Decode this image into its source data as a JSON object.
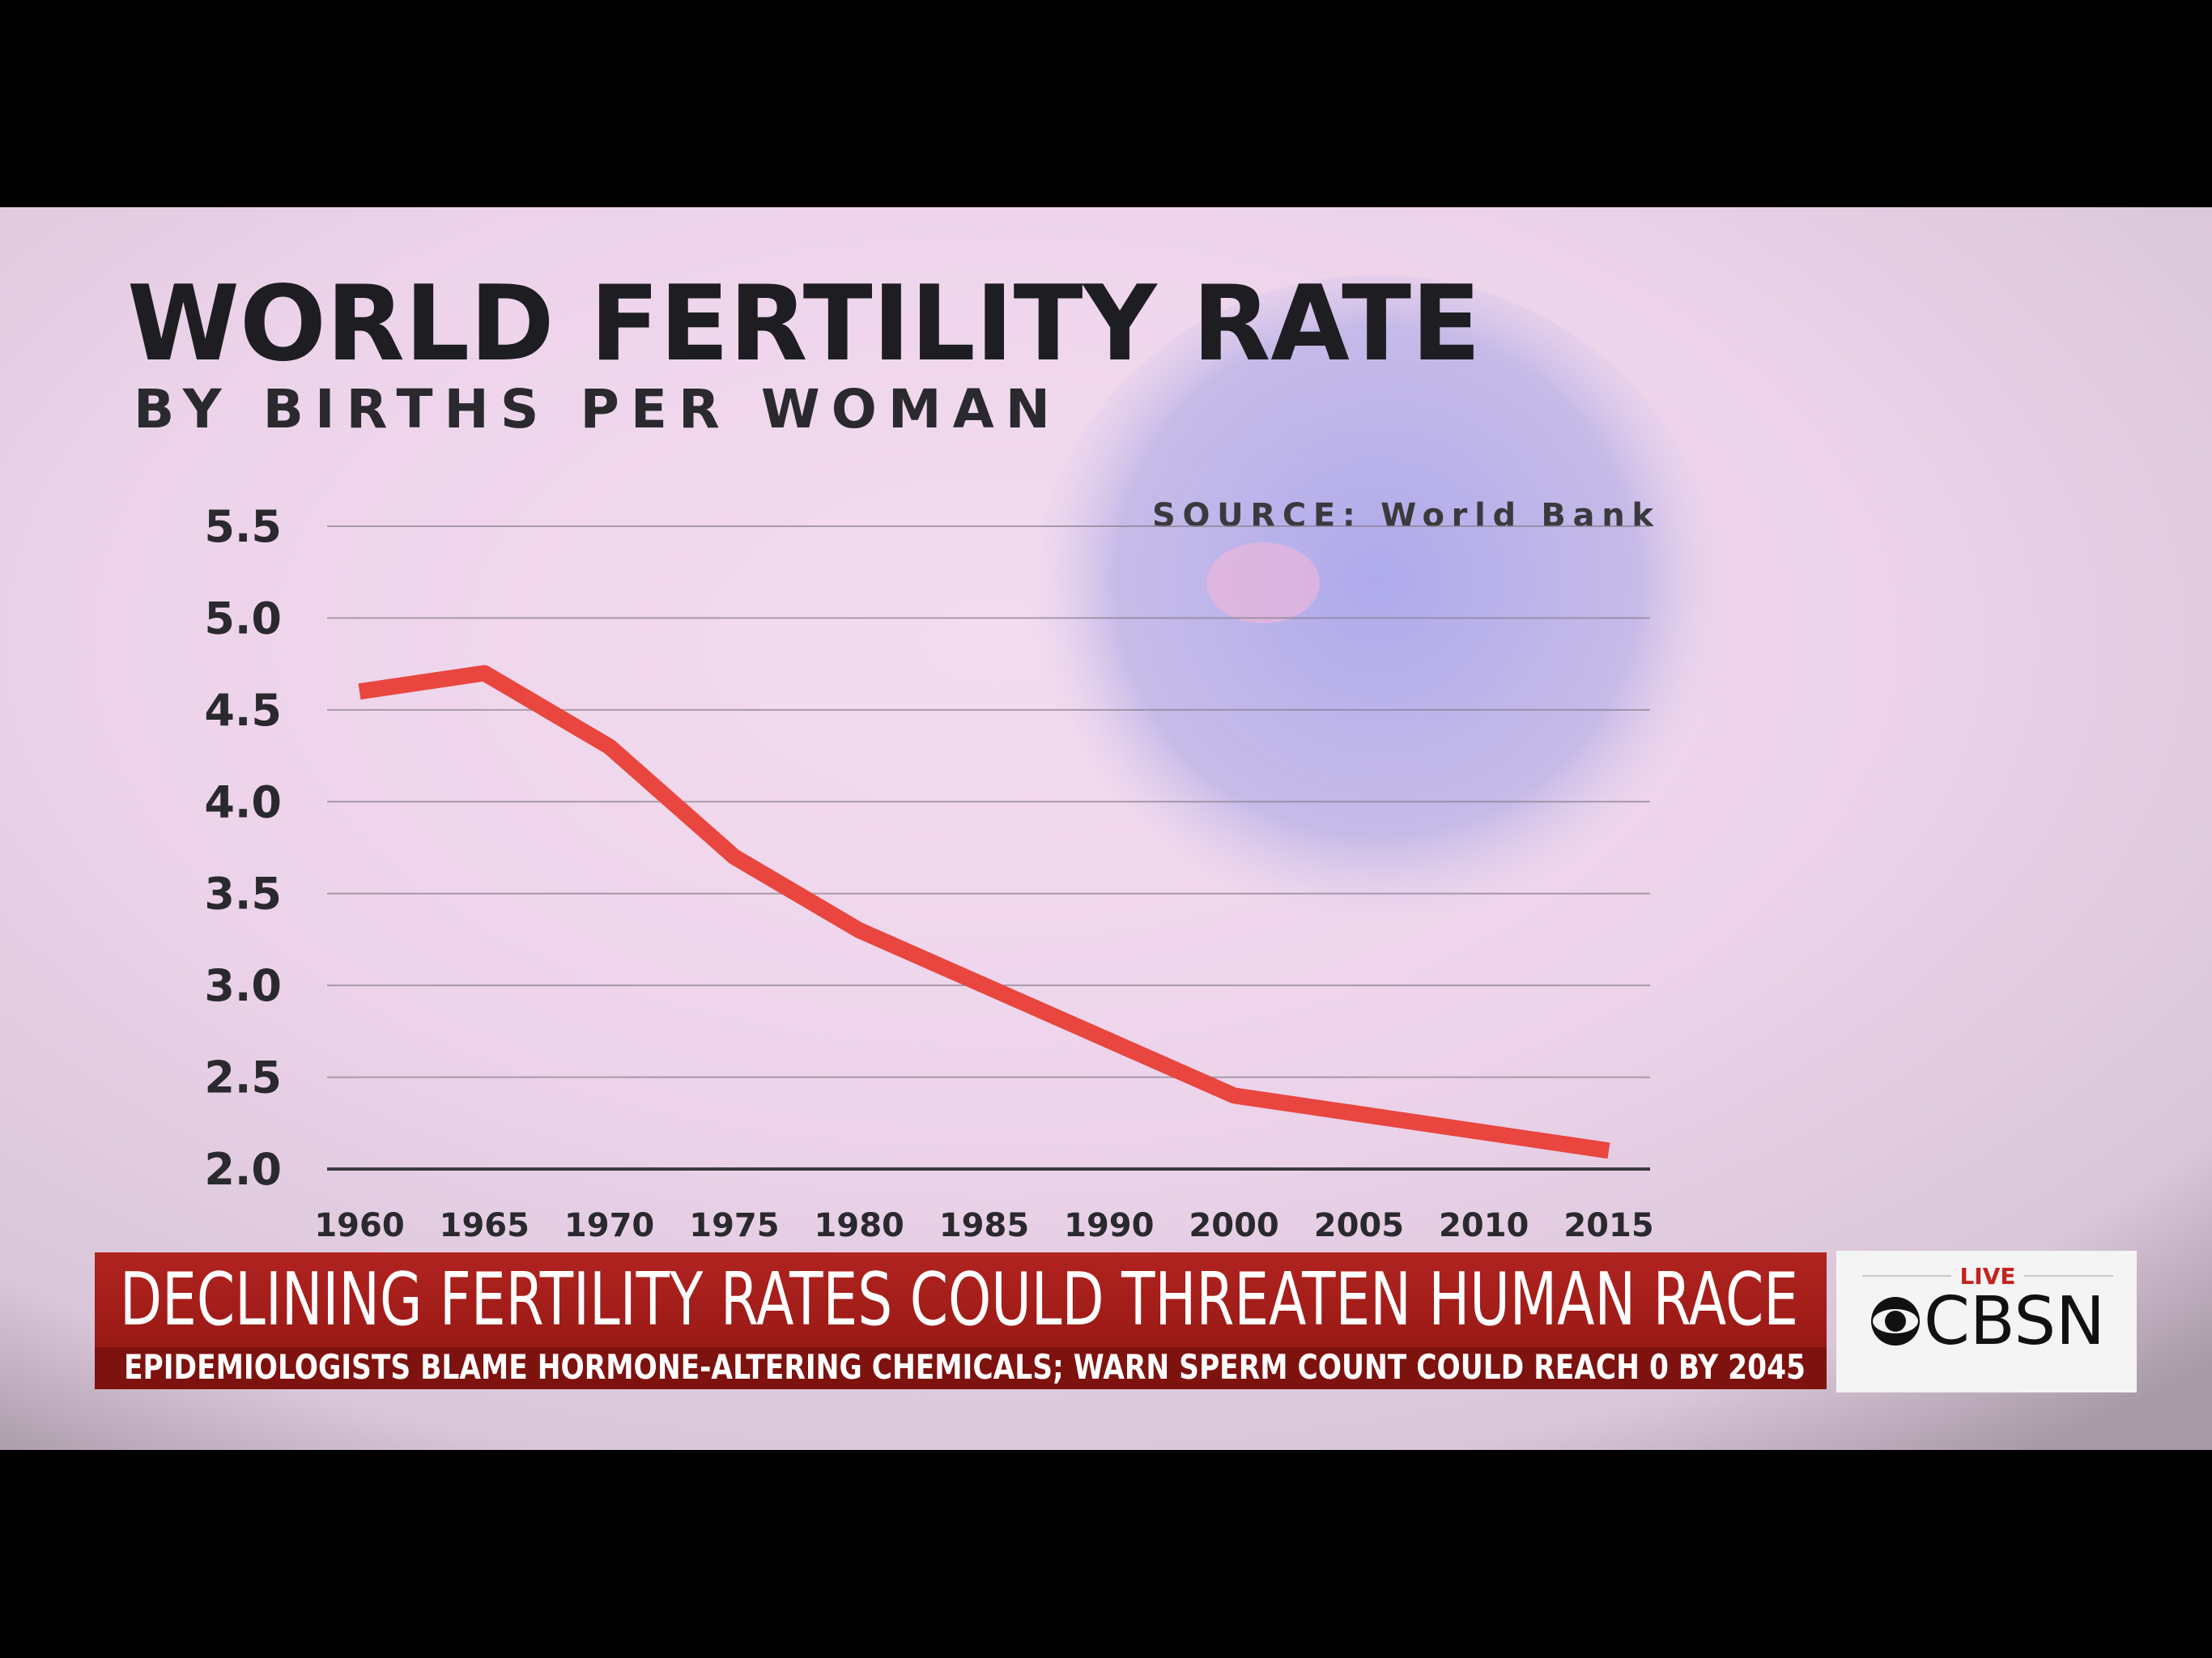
{
  "chart_data": {
    "type": "line",
    "title": "WORLD FERTILITY RATE",
    "subtitle": "BY BIRTHS PER WOMAN",
    "source": "SOURCE: World Bank",
    "categories": [
      "1960",
      "1965",
      "1970",
      "1975",
      "1980",
      "1985",
      "1990",
      "2000",
      "2005",
      "2010",
      "2015"
    ],
    "values": [
      4.6,
      4.7,
      4.3,
      3.7,
      3.3,
      3.0,
      2.7,
      2.4,
      2.3,
      2.2,
      2.1
    ],
    "color": "#e8463f",
    "ylim": [
      2,
      5.5
    ],
    "yticks": [
      {
        "value": 2,
        "label": "2.0"
      },
      2.5,
      {
        "value": 3,
        "label": "3.0"
      },
      3.5,
      {
        "value": 4,
        "label": "4.0"
      },
      4.5,
      {
        "value": 5,
        "label": "5.0"
      },
      5.5
    ],
    "grid": true
  },
  "lower_third": {
    "headline": "DECLINING FERTILITY RATES COULD THREATEN HUMAN RACE",
    "subheadline": "EPIDEMIOLOGISTS BLAME HORMONE-ALTERING CHEMICALS; WARN SPERM COUNT COULD REACH 0 BY 2045"
  },
  "network": {
    "live": "LIVE",
    "logo": "CBSN"
  }
}
